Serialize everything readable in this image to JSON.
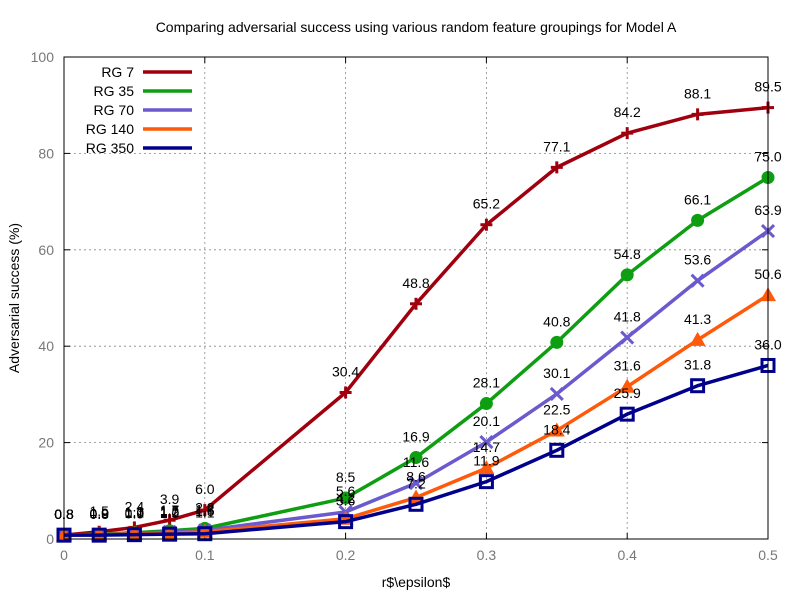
{
  "chart_data": {
    "type": "line",
    "title": "Comparing adversarial success using various random feature groupings for Model A",
    "xlabel": "r$\\epsilon$",
    "ylabel": "Adversarial success (%)",
    "xlim": [
      0,
      0.5
    ],
    "ylim": [
      0,
      100
    ],
    "xticks": [
      "0",
      "0.1",
      "0.2",
      "0.3",
      "0.4",
      "0.5"
    ],
    "yticks": [
      "0",
      "20",
      "40",
      "60",
      "80",
      "100"
    ],
    "grid": true,
    "legend_position": "top-left",
    "x": [
      0,
      0.025,
      0.05,
      0.075,
      0.1,
      0.2,
      0.25,
      0.3,
      0.35,
      0.4,
      0.45,
      0.5
    ],
    "series": [
      {
        "name": "RG 7",
        "color": "#a0000e",
        "marker": "plus",
        "values": [
          0.8,
          1.5,
          2.4,
          3.9,
          6.0,
          30.4,
          48.8,
          65.2,
          77.1,
          84.2,
          88.1,
          89.5
        ],
        "labels": [
          "0.8",
          "1.5",
          "2.4",
          "3.9",
          "6.0",
          "30.4",
          "48.8",
          "65.2",
          "77.1",
          "84.2",
          "88.1",
          "89.5"
        ]
      },
      {
        "name": "RG 35",
        "color": "#0d9e11",
        "marker": "circle",
        "values": [
          0.8,
          1.0,
          1.3,
          1.7,
          2.2,
          8.5,
          16.9,
          28.1,
          40.8,
          54.8,
          66.1,
          75.0
        ],
        "labels": [
          "0.8",
          "1.0",
          "1.3",
          "1.7",
          "2.2",
          "8.5",
          "16.9",
          "28.1",
          "40.8",
          "54.8",
          "66.1",
          "75.0"
        ]
      },
      {
        "name": "RG 70",
        "color": "#6a5acd",
        "marker": "x",
        "values": [
          0.8,
          0.9,
          1.1,
          1.5,
          1.8,
          5.6,
          11.6,
          20.1,
          30.1,
          41.8,
          53.6,
          63.9
        ],
        "labels": [
          "0.8",
          "0.9",
          "1.1",
          "1.5",
          "1.8",
          "5.6",
          "11.6",
          "20.1",
          "30.1",
          "41.8",
          "53.6",
          "63.9"
        ]
      },
      {
        "name": "RG 140",
        "color": "#ff5a0a",
        "marker": "triangle",
        "values": [
          0.8,
          0.9,
          1.0,
          1.2,
          1.5,
          4.2,
          8.6,
          14.7,
          22.5,
          31.6,
          41.3,
          50.6
        ],
        "labels": [
          "0.8",
          "0.9",
          "1.0",
          "1.2",
          "1.5",
          "4.2",
          "8.6",
          "14.7",
          "22.5",
          "31.6",
          "41.3",
          "50.6"
        ]
      },
      {
        "name": "RG 350",
        "color": "#00008b",
        "marker": "square",
        "values": [
          0.8,
          0.8,
          0.9,
          1.0,
          1.1,
          3.6,
          7.2,
          11.9,
          18.4,
          25.9,
          31.8,
          36.0
        ],
        "labels": [
          "0.8",
          "0.8",
          "0.9",
          "1.0",
          "1.1",
          "3.6",
          "7.2",
          "11.9",
          "18.4",
          "25.9",
          "31.8",
          "36.0"
        ]
      }
    ]
  }
}
